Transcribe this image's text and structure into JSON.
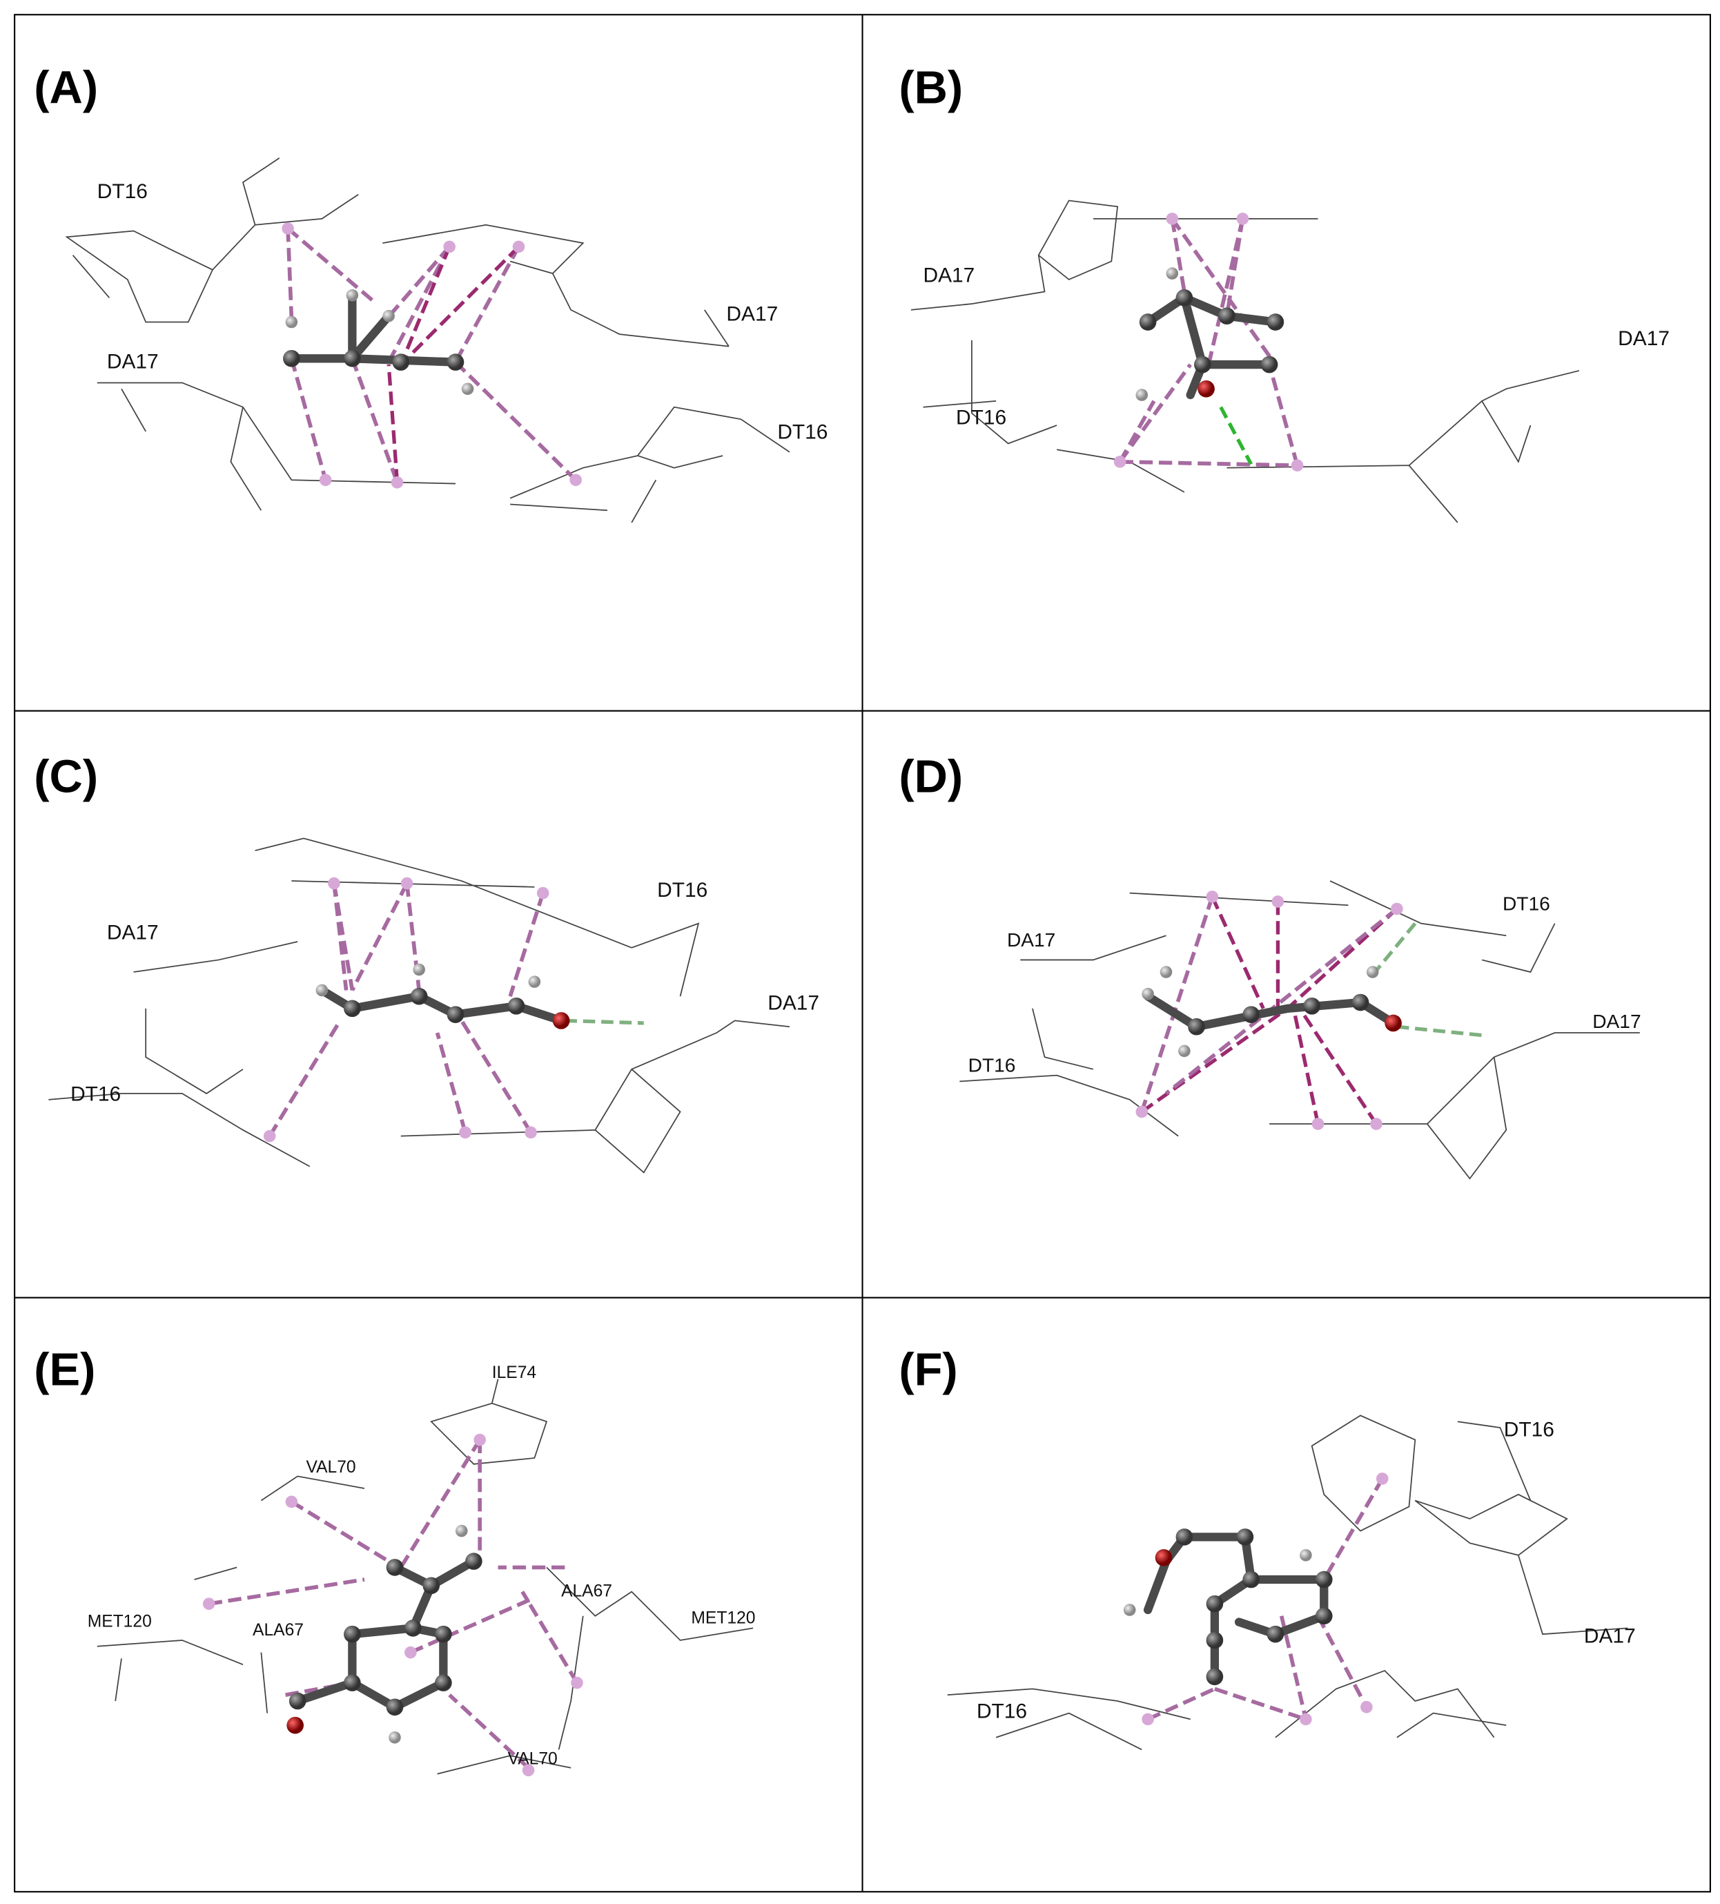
{
  "panels": [
    {
      "label": "(A)",
      "residues": [
        "DT16",
        "DA17",
        "DA17",
        "DT16"
      ]
    },
    {
      "label": "(B)",
      "residues": [
        "DA17",
        "DA17",
        "DT16"
      ]
    },
    {
      "label": "(C)",
      "residues": [
        "DT16",
        "DA17",
        "DA17",
        "DT16"
      ]
    },
    {
      "label": "(D)",
      "residues": [
        "DT16",
        "DA17",
        "DA17",
        "DT16"
      ]
    },
    {
      "label": "(E)",
      "residues": [
        "ILE74",
        "VAL70",
        "ALA67",
        "MET120",
        "ALA67",
        "MET120",
        "VAL70"
      ]
    },
    {
      "label": "(F)",
      "residues": [
        "DT16",
        "DA17",
        "DT16"
      ]
    }
  ]
}
